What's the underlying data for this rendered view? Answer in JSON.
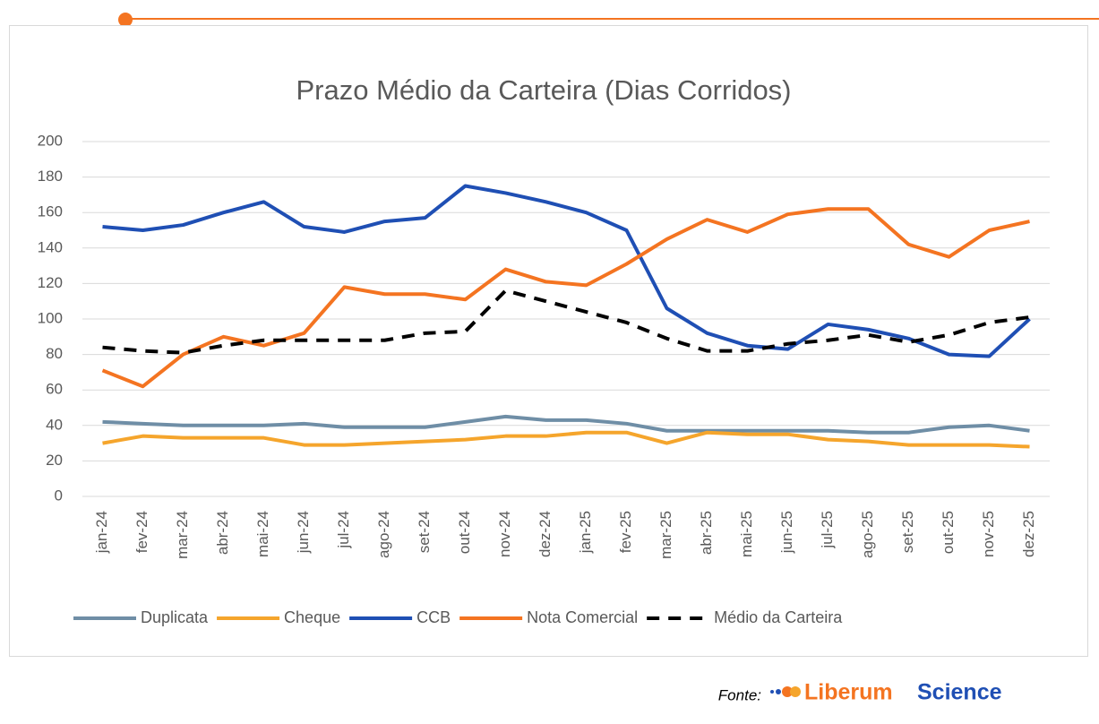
{
  "chart_data": {
    "type": "line",
    "title": "Prazo Médio da Carteira (Dias Corridos)",
    "categories": [
      "jan-24",
      "fev-24",
      "mar-24",
      "abr-24",
      "mai-24",
      "jun-24",
      "jul-24",
      "ago-24",
      "set-24",
      "out-24",
      "nov-24",
      "dez-24",
      "jan-25",
      "fev-25",
      "mar-25",
      "abr-25",
      "mai-25",
      "jun-25",
      "jul-25",
      "ago-25",
      "set-25",
      "out-25",
      "nov-25",
      "dez-25"
    ],
    "series": [
      {
        "name": "Duplicata",
        "color": "#6f8ea6",
        "style": "solid",
        "values": [
          42,
          41,
          40,
          40,
          40,
          41,
          39,
          39,
          39,
          42,
          45,
          43,
          43,
          41,
          37,
          37,
          37,
          37,
          37,
          36,
          36,
          39,
          40,
          37
        ]
      },
      {
        "name": "Cheque",
        "color": "#f5a52c",
        "style": "solid",
        "values": [
          30,
          34,
          33,
          33,
          33,
          29,
          29,
          30,
          31,
          32,
          34,
          34,
          36,
          36,
          30,
          36,
          35,
          35,
          32,
          31,
          29,
          29,
          29,
          28
        ]
      },
      {
        "name": "CCB",
        "color": "#1f4fb4",
        "style": "solid",
        "values": [
          152,
          150,
          153,
          160,
          166,
          152,
          149,
          155,
          157,
          175,
          171,
          166,
          160,
          150,
          106,
          92,
          85,
          83,
          97,
          94,
          89,
          80,
          79,
          100
        ]
      },
      {
        "name": "Nota Comercial",
        "color": "#f47421",
        "style": "solid",
        "values": [
          71,
          62,
          80,
          90,
          85,
          92,
          118,
          114,
          114,
          111,
          128,
          121,
          119,
          131,
          145,
          156,
          149,
          159,
          162,
          162,
          142,
          135,
          150,
          155
        ]
      },
      {
        "name": "Médio da Carteira",
        "color": "#000000",
        "style": "dashed",
        "values": [
          84,
          82,
          81,
          85,
          88,
          88,
          88,
          88,
          92,
          93,
          116,
          110,
          104,
          98,
          89,
          82,
          82,
          86,
          88,
          91,
          87,
          91,
          98,
          101
        ]
      }
    ],
    "ylim": [
      0,
      200
    ],
    "yticks": [
      0,
      20,
      40,
      60,
      80,
      100,
      120,
      140,
      160,
      180,
      200
    ],
    "grid": true,
    "legend": "bottom"
  },
  "source_label": "Fonte:",
  "brand_first": "Liberum",
  "brand_second": "Science"
}
